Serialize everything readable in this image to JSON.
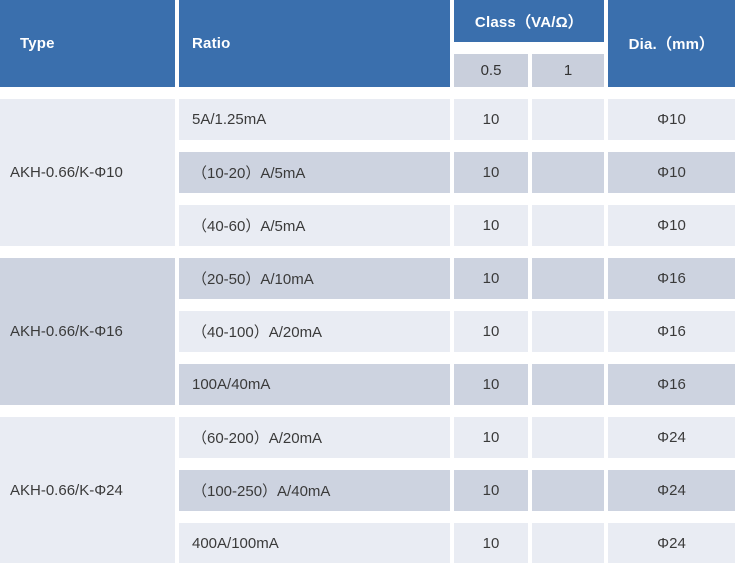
{
  "header": {
    "type": "Type",
    "ratio": "Ratio",
    "class_label": "Class（VA/Ω）",
    "class_sub": [
      "0.5",
      "1"
    ],
    "dia": "Dia.（mm）"
  },
  "groups": [
    {
      "type": "AKH-0.66/K-Φ10",
      "rows": [
        {
          "ratio": "5A/1.25mA",
          "class05": "10",
          "class1": "",
          "dia": "Φ10"
        },
        {
          "ratio": "（10-20）A/5mA",
          "class05": "10",
          "class1": "",
          "dia": "Φ10"
        },
        {
          "ratio": "（40-60）A/5mA",
          "class05": "10",
          "class1": "",
          "dia": "Φ10"
        }
      ]
    },
    {
      "type": "AKH-0.66/K-Φ16",
      "rows": [
        {
          "ratio": "（20-50）A/10mA",
          "class05": "10",
          "class1": "",
          "dia": "Φ16"
        },
        {
          "ratio": "（40-100）A/20mA",
          "class05": "10",
          "class1": "",
          "dia": "Φ16"
        },
        {
          "ratio": "100A/40mA",
          "class05": "10",
          "class1": "",
          "dia": "Φ16"
        }
      ]
    },
    {
      "type": "AKH-0.66/K-Φ24",
      "rows": [
        {
          "ratio": "（60-200）A/20mA",
          "class05": "10",
          "class1": "",
          "dia": "Φ24"
        },
        {
          "ratio": "（100-250）A/40mA",
          "class05": "10",
          "class1": "",
          "dia": "Φ24"
        },
        {
          "ratio": "400A/100mA",
          "class05": "10",
          "class1": "",
          "dia": "Φ24"
        }
      ]
    }
  ],
  "colors": {
    "header_bg": "#3a6fad",
    "header_text": "#ffffff",
    "row_light": "#e9ecf3",
    "row_dark": "#cdd3e0",
    "subheader_bg": "#c9cfdc",
    "body_text": "#3a3a3a"
  }
}
